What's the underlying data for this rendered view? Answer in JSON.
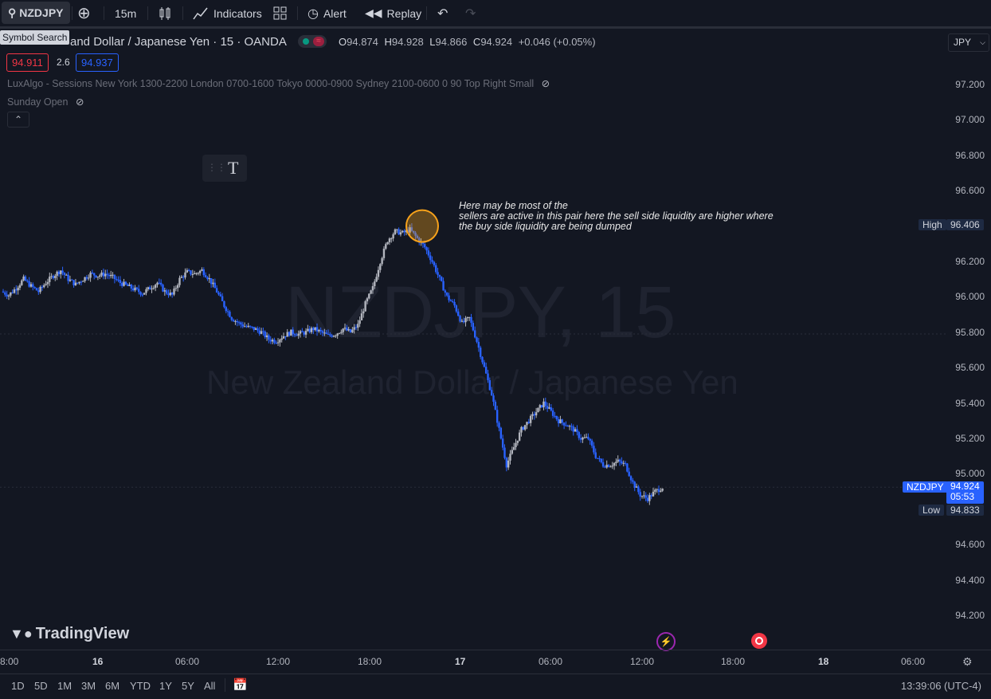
{
  "toolbar": {
    "symbol": "NZDJPY",
    "interval": "15m",
    "indicators": "Indicators",
    "alert": "Alert",
    "replay": "Replay",
    "tooltip": "Symbol Search"
  },
  "legend": {
    "title": "and Dollar / Japanese Yen · 15 · OANDA",
    "o_label": "O",
    "o": "94.874",
    "h_label": "H",
    "h": "94.928",
    "l_label": "L",
    "l": "94.866",
    "c_label": "C",
    "c": "94.924",
    "change": "+0.046 (+0.05%)",
    "bid": "94.911",
    "spread": "2.6",
    "ask": "94.937",
    "currency": "JPY"
  },
  "indicators": [
    {
      "label": "LuxAlgo - Sessions New York 1300-2200 London 0700-1600 Tokyo 0000-0900 Sydney 2100-0600 0 90 Top Right Small"
    },
    {
      "label": "Sunday Open"
    }
  ],
  "watermark": {
    "symbol": "NZDJPY, 15",
    "name": "New Zealand Dollar / Japanese Yen"
  },
  "annotation": {
    "line1": "Here may be most of the",
    "line2": "sellers are active in this pair here the sell side liquidity are higher where",
    "line3": "the buy side liquidity are being dumped"
  },
  "tags": {
    "high_label": "High",
    "high_value": "96.406",
    "symbol_label": "NZDJPY",
    "last_value": "94.924",
    "countdown": "05:53",
    "low_label": "Low",
    "low_value": "94.833"
  },
  "branding": "TradingView",
  "range_buttons": [
    "1D",
    "5D",
    "1M",
    "3M",
    "6M",
    "YTD",
    "1Y",
    "5Y",
    "All"
  ],
  "clock": "13:39:06 (UTC-4)",
  "colors": {
    "bg": "#131722",
    "up": "#b2b5be",
    "down": "#2962ff",
    "accent": "#f7a21b"
  },
  "chart_data": {
    "type": "candlestick",
    "y_ticks": [
      "97.200",
      "97.000",
      "96.800",
      "96.600",
      "96.200",
      "96.000",
      "95.800",
      "95.600",
      "95.400",
      "95.200",
      "95.000",
      "94.600",
      "94.400",
      "94.200"
    ],
    "x_ticks": [
      "8:00",
      "16",
      "06:00",
      "12:00",
      "18:00",
      "17",
      "06:00",
      "12:00",
      "18:00",
      "18",
      "06:00"
    ],
    "ylim": [
      94.1,
      97.3
    ],
    "close_path": [
      96.03,
      96.01,
      96.05,
      96.1,
      96.06,
      96.03,
      96.08,
      96.12,
      96.15,
      96.1,
      96.07,
      96.1,
      96.13,
      96.12,
      96.13,
      96.11,
      96.08,
      96.06,
      96.04,
      96.02,
      96.05,
      96.08,
      96.03,
      96.01,
      96.1,
      96.14,
      96.13,
      96.15,
      96.1,
      96.03,
      95.95,
      95.88,
      95.85,
      95.83,
      95.82,
      95.8,
      95.76,
      95.75,
      95.78,
      95.8,
      95.79,
      95.8,
      95.82,
      95.8,
      95.78,
      95.79,
      95.82,
      95.8,
      95.84,
      95.96,
      96.05,
      96.2,
      96.32,
      96.37,
      96.36,
      96.38,
      96.33,
      96.28,
      96.2,
      96.1,
      96.0,
      95.95,
      95.85,
      95.88,
      95.75,
      95.6,
      95.45,
      95.25,
      95.05,
      95.15,
      95.25,
      95.3,
      95.35,
      95.4,
      95.35,
      95.3,
      95.28,
      95.25,
      95.2,
      95.2,
      95.1,
      95.05,
      95.05,
      95.07,
      95.05,
      94.95,
      94.88,
      94.86,
      94.9,
      94.924
    ],
    "annotation_price": 96.4
  }
}
